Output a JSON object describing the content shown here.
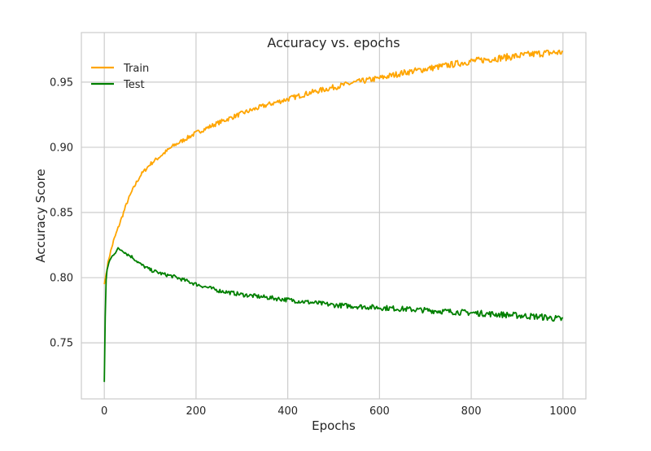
{
  "chart_data": {
    "type": "line",
    "title": "Accuracy vs. epochs",
    "xlabel": "Epochs",
    "ylabel": "Accuracy Score",
    "xlim": [
      -50,
      1050
    ],
    "ylim": [
      0.707,
      0.988
    ],
    "xticks": [
      0,
      200,
      400,
      600,
      800,
      1000
    ],
    "xtick_labels": [
      "0",
      "200",
      "400",
      "600",
      "800",
      "1000"
    ],
    "yticks": [
      0.75,
      0.8,
      0.85,
      0.9,
      0.95
    ],
    "ytick_labels": [
      "0.75",
      "0.80",
      "0.85",
      "0.90",
      "0.95"
    ],
    "grid": true,
    "legend_position": "top-left",
    "series": [
      {
        "name": "Train",
        "color": "#FFA500",
        "x": [
          0,
          5,
          10,
          20,
          30,
          40,
          50,
          60,
          70,
          80,
          100,
          125,
          150,
          175,
          200,
          250,
          300,
          350,
          400,
          450,
          500,
          550,
          600,
          650,
          700,
          750,
          800,
          850,
          900,
          950,
          1000
        ],
        "y": [
          0.795,
          0.805,
          0.815,
          0.828,
          0.838,
          0.848,
          0.858,
          0.866,
          0.873,
          0.879,
          0.887,
          0.894,
          0.901,
          0.906,
          0.911,
          0.919,
          0.926,
          0.932,
          0.937,
          0.942,
          0.946,
          0.95,
          0.953,
          0.957,
          0.96,
          0.963,
          0.966,
          0.968,
          0.97,
          0.972,
          0.973
        ]
      },
      {
        "name": "Test",
        "color": "#008000",
        "x": [
          0,
          3,
          6,
          10,
          20,
          30,
          40,
          50,
          60,
          70,
          80,
          100,
          125,
          150,
          175,
          200,
          250,
          300,
          350,
          400,
          450,
          500,
          550,
          600,
          650,
          700,
          750,
          800,
          850,
          900,
          950,
          1000
        ],
        "y": [
          0.72,
          0.795,
          0.805,
          0.812,
          0.818,
          0.822,
          0.821,
          0.818,
          0.816,
          0.813,
          0.81,
          0.806,
          0.803,
          0.801,
          0.798,
          0.795,
          0.79,
          0.787,
          0.785,
          0.783,
          0.781,
          0.779,
          0.778,
          0.777,
          0.776,
          0.775,
          0.774,
          0.773,
          0.772,
          0.771,
          0.77,
          0.768
        ]
      }
    ]
  }
}
